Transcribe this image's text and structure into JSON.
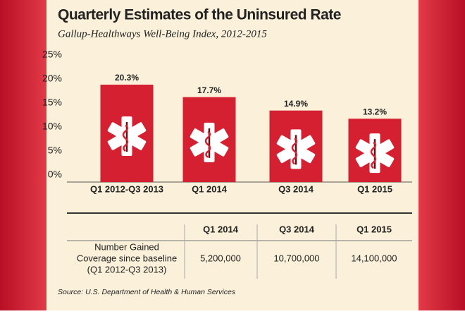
{
  "chart_data": {
    "type": "bar",
    "title": "Quarterly Estimates of the Uninsured Rate",
    "subtitle": "Gallup-Healthways Well-Being Index, 2012-2015",
    "categories": [
      "Q1 2012-Q3 2013",
      "Q1 2014",
      "Q3 2014",
      "Q1 2015"
    ],
    "values": [
      20.3,
      17.7,
      14.9,
      13.2
    ],
    "value_labels": [
      "20.3%",
      "17.7%",
      "14.9%",
      "13.2%"
    ],
    "color": "#d42030",
    "ylim": [
      0,
      25
    ],
    "yticks": [
      {
        "value": 0,
        "label": "0%"
      },
      {
        "value": 5,
        "label": "5%"
      },
      {
        "value": 10,
        "label": "10%"
      },
      {
        "value": 15,
        "label": "15%"
      },
      {
        "value": 20,
        "label": "20%"
      },
      {
        "value": 25,
        "label": "25%"
      }
    ],
    "grid": false
  },
  "table": {
    "header": [
      "Q1 2014",
      "Q3 2014",
      "Q1 2015"
    ],
    "row_label": [
      "Number Gained",
      "Coverage since baseline",
      "(Q1 2012-Q3 2013)"
    ],
    "values": [
      "5,200,000",
      "10,700,000",
      "14,100,000"
    ]
  },
  "source": "Source: U.S. Department of Health & Human Services"
}
